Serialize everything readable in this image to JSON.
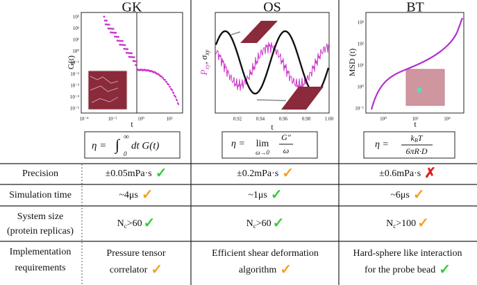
{
  "columns": [
    {
      "title": "GK",
      "plot": {
        "xlabel": "t",
        "ylabel": "G(t)",
        "yticks": [
          "10³",
          "10²",
          "10¹",
          "10⁰",
          "10⁻¹",
          "10⁻²",
          "10⁻³",
          "10⁻⁴",
          "10⁻⁵"
        ],
        "xticks": [
          "10⁻⁴",
          "10⁻²",
          "10⁰",
          "10²"
        ]
      },
      "formula": {
        "lhs": "η =",
        "integral": "∫",
        "lower": "0",
        "upper": "∞",
        "body": "dt G(t)"
      }
    },
    {
      "title": "OS",
      "plot": {
        "xlabel": "t",
        "ylabel": {
          "p": "P",
          "p_sub": "xy",
          "sep": ",",
          "s": "σ",
          "s_sub": "xy"
        },
        "xticks": [
          "0.92",
          "0.94",
          "0.96",
          "0.98",
          "1.00"
        ]
      },
      "formula": {
        "lhs": "η =",
        "lim": "lim",
        "lim_sub": "ω→0",
        "num": "G″",
        "den": "ω"
      }
    },
    {
      "title": "BT",
      "plot": {
        "xlabel": "t",
        "ylabel": "MSD (t)",
        "yticks": [
          "10³",
          "10²",
          "10¹",
          "10⁰",
          "10⁻¹"
        ],
        "xticks": [
          "10⁰",
          "10²",
          "10⁴"
        ]
      },
      "formula": {
        "lhs": "η =",
        "num": "k",
        "num_sub": "B",
        "num_rest": "T",
        "den": "6πR·D"
      }
    }
  ],
  "rows": [
    {
      "label": [
        "Precision"
      ],
      "cells": [
        {
          "lines": [
            "±0.05mPa·s"
          ],
          "mark": "✓",
          "color": "#33cc33"
        },
        {
          "lines": [
            "±0.2mPa·s"
          ],
          "mark": "✓",
          "color": "#f5a020"
        },
        {
          "lines": [
            "±0.6mPa·s"
          ],
          "mark": "✗",
          "color": "#e02020"
        }
      ]
    },
    {
      "label": [
        "Simulation time"
      ],
      "cells": [
        {
          "lines": [
            "~4μs"
          ],
          "mark": "✓",
          "color": "#f5a020"
        },
        {
          "lines": [
            "~1μs"
          ],
          "mark": "✓",
          "color": "#33cc33"
        },
        {
          "lines": [
            "~6μs"
          ],
          "mark": "✓",
          "color": "#f5a020"
        }
      ]
    },
    {
      "label": [
        "System size",
        "(protein replicas)"
      ],
      "cells": [
        {
          "lines": [
            "N",
            "c",
            ">60"
          ],
          "sub": true,
          "mark": "✓",
          "color": "#33cc33"
        },
        {
          "lines": [
            "N",
            "c",
            ">60"
          ],
          "sub": true,
          "mark": "✓",
          "color": "#33cc33"
        },
        {
          "lines": [
            "N",
            "c",
            ">100"
          ],
          "sub": true,
          "mark": "✓",
          "color": "#f5a020"
        }
      ]
    },
    {
      "label": [
        "Implementation",
        "requirements"
      ],
      "cells": [
        {
          "lines": [
            "Pressure tensor",
            "correlator"
          ],
          "mark": "✓",
          "color": "#f5a020"
        },
        {
          "lines": [
            "Efficient shear deformation",
            "algorithm"
          ],
          "mark": "✓",
          "color": "#f5a020"
        },
        {
          "lines": [
            "Hard-sphere like interaction",
            "for the probe bead"
          ],
          "mark": "✓",
          "color": "#33cc33"
        }
      ]
    }
  ]
}
